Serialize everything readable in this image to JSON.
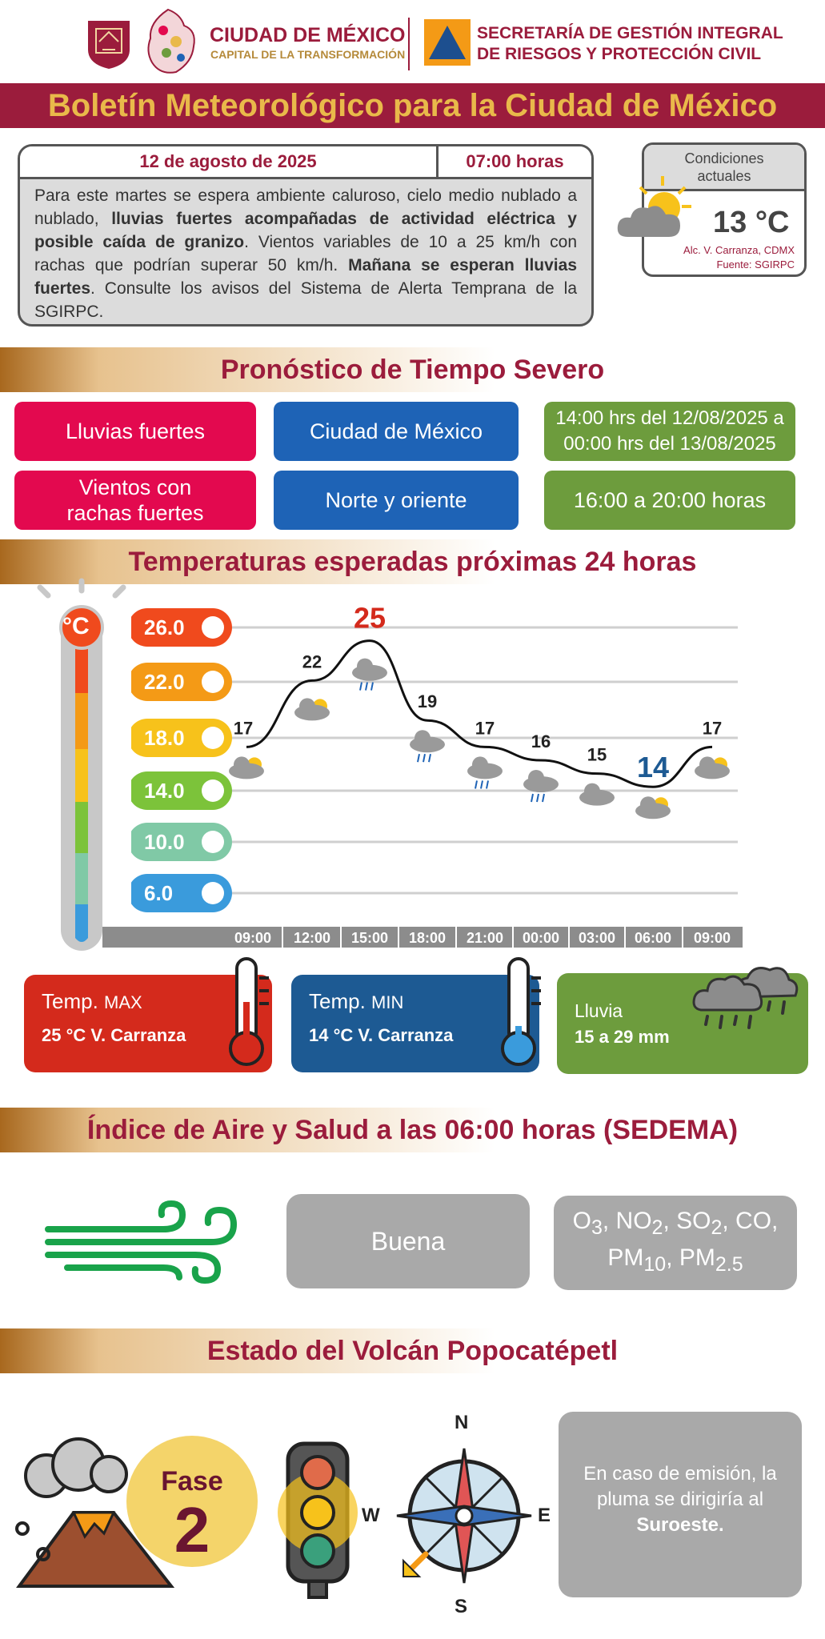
{
  "header": {
    "cdmx_line1": "CIUDAD DE MÉXICO",
    "cdmx_line2": "CAPITAL DE LA TRANSFORMACIÓN",
    "sgirpc_line1": "SECRETARÍA DE GESTIÓN INTEGRAL",
    "sgirpc_line2": "DE RIESGOS Y PROTECCIÓN CIVIL"
  },
  "title": "Boletín Meteorológico para la Ciudad de México",
  "bulletin": {
    "date": "12 de agosto de 2025",
    "time": "07:00 horas",
    "t1": "Para este martes se espera ambiente caluroso, cielo medio nublado a nublado, ",
    "b1": "lluvias fuertes acompañadas de actividad eléctrica y posible caída de granizo",
    "t2": ". Vientos variables de 10 a 25 km/h con rachas que podrían superar 50 km/h. ",
    "b2": "Mañana se esperan lluvias fuertes",
    "t3": ". Consulte los avisos del Sistema de Alerta Temprana de la SGIRPC."
  },
  "current": {
    "label_line1": "Condiciones",
    "label_line2": "actuales",
    "temp": "13 °C",
    "location": "Alc. V. Carranza, CDMX",
    "source": "Fuente: SGIRPC"
  },
  "severe": {
    "title": "Pronóstico de Tiempo Severo",
    "rows": [
      {
        "phenomenon": "Lluvias fuertes",
        "area": "Ciudad de México",
        "period": "14:00 hrs del 12/08/2025 a 00:00 hrs del 13/08/2025"
      },
      {
        "phenomenon": "Vientos con rachas fuertes",
        "area": "Norte y oriente",
        "period": "16:00 a 20:00 horas"
      }
    ]
  },
  "temps": {
    "title": "Temperaturas esperadas próximas 24 horas",
    "unit": "°C",
    "scale": [
      "26.0",
      "22.0",
      "18.0",
      "14.0",
      "10.0",
      "6.0"
    ],
    "scale_colors": [
      "#f04a1d",
      "#f49a16",
      "#f7c21b",
      "#7cc33a",
      "#80c9a6",
      "#3a9bdc"
    ],
    "hours": [
      "09:00",
      "12:00",
      "15:00",
      "18:00",
      "21:00",
      "00:00",
      "03:00",
      "06:00",
      "09:00"
    ],
    "values": [
      "17",
      "22",
      "25",
      "19",
      "17",
      "16",
      "15",
      "14",
      "17"
    ],
    "icons": [
      "sun-cloud-icon",
      "sun-cloud-icon",
      "storm-cloud-icon",
      "storm-cloud-icon",
      "storm-cloud-icon",
      "storm-cloud-icon",
      "cloud-icon",
      "sun-cloud-icon",
      "sun-cloud-icon"
    ]
  },
  "summary": {
    "max_label": "Temp.",
    "max_small": "MAX",
    "max_value": "25 °C  V. Carranza",
    "min_label": "Temp.",
    "min_small": "MIN",
    "min_value": "14 °C  V. Carranza",
    "rain_label": "Lluvia",
    "rain_value": "15 a 29 mm"
  },
  "air": {
    "title": "Índice de Aire y Salud a las 06:00 horas (SEDEMA)",
    "quality": "Buena",
    "pollutants_line1": "O3, NO2, SO2, CO,",
    "pollutants_line2": "PM10, PM2.5"
  },
  "volcano": {
    "title": "Estado del Volcán Popocatépetl",
    "phase_label": "Fase",
    "phase_number": "2",
    "compass": {
      "n": "N",
      "s": "S",
      "e": "E",
      "w": "W"
    },
    "plume_text": "En caso de emisión, la pluma se dirigiría al ",
    "plume_direction": "Suroeste."
  },
  "colors": {
    "brand": "#9b1c3c",
    "gold": "#e9b94a",
    "red": "#e3094f",
    "blue": "#1e63b6",
    "green": "#6d9c3d",
    "max_red": "#d42a1c",
    "min_blue": "#1d5a93"
  }
}
